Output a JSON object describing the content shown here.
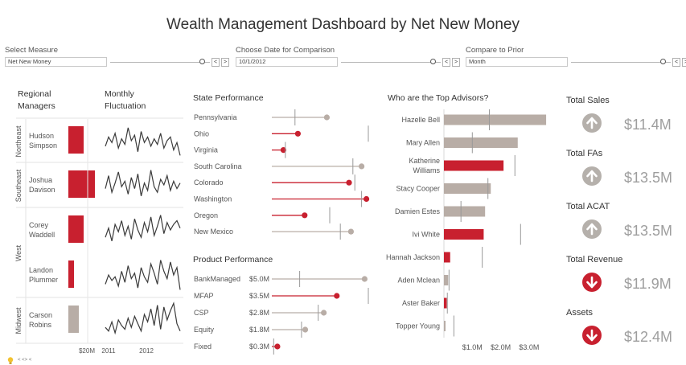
{
  "title": "Wealth Management Dashboard by Net New Money",
  "filters": [
    {
      "label": "Select Measure",
      "value": "Net New Money",
      "slider_fraction": 0.93
    },
    {
      "label": "Choose Date for Comparison",
      "value": "10/1/2012",
      "slider_fraction": 0.93
    },
    {
      "label": "Compare to Prior",
      "value": "Month",
      "slider_fraction": 0.93
    }
  ],
  "step_prev": "<",
  "step_next": ">",
  "regional": {
    "title_line1": "Regional",
    "title_line2": "Managers",
    "regions": [
      {
        "name": "Northeast",
        "managers": [
          "Hudson Simpson"
        ]
      },
      {
        "name": "Southeast",
        "managers": [
          "Joshua Davison"
        ]
      },
      {
        "name": "West",
        "managers": [
          "Corey Waddell",
          "Landon Plummer"
        ]
      },
      {
        "name": "Midwest",
        "managers": [
          "Carson Robins"
        ]
      }
    ],
    "bar_axis_label": "$20M",
    "managers": [
      {
        "line1": "Hudson",
        "line2": "Simpson",
        "value": 19,
        "positive": true
      },
      {
        "line1": "Joshua",
        "line2": "Davison",
        "value": 33,
        "positive": true
      },
      {
        "line1": "Corey",
        "line2": "Waddell",
        "value": 19,
        "positive": true
      },
      {
        "line1": "Landon",
        "line2": "Plummer",
        "value": 7,
        "positive": true
      },
      {
        "line1": "Carson",
        "line2": "Robins",
        "value": 13,
        "positive": false
      }
    ]
  },
  "monthly": {
    "title_line1": "Monthly",
    "title_line2": "Fluctuation",
    "axis_labels": [
      "2011",
      "2012"
    ],
    "series": [
      [
        0.35,
        0.6,
        0.45,
        0.7,
        0.3,
        0.55,
        0.4,
        0.85,
        0.5,
        0.65,
        0.2,
        0.75,
        0.45,
        0.6,
        0.35,
        0.55,
        0.4,
        0.7,
        0.3,
        0.5,
        0.6,
        0.25,
        0.45,
        0.1
      ],
      [
        0.4,
        0.75,
        0.3,
        0.55,
        0.85,
        0.45,
        0.6,
        0.25,
        0.7,
        0.4,
        0.8,
        0.2,
        0.55,
        0.35,
        0.9,
        0.45,
        0.3,
        0.65,
        0.5,
        0.75,
        0.35,
        0.6,
        0.4,
        0.55
      ],
      [
        0.3,
        0.55,
        0.2,
        0.65,
        0.45,
        0.75,
        0.35,
        0.6,
        0.25,
        0.8,
        0.5,
        0.3,
        0.7,
        0.45,
        0.85,
        0.35,
        0.6,
        0.9,
        0.4,
        0.7,
        0.5,
        0.65,
        0.75,
        0.55
      ],
      [
        0.25,
        0.5,
        0.35,
        0.45,
        0.2,
        0.6,
        0.3,
        0.75,
        0.4,
        0.55,
        0.15,
        0.7,
        0.45,
        0.3,
        0.8,
        0.55,
        0.25,
        0.9,
        0.6,
        0.4,
        0.85,
        0.5,
        0.7,
        0.1
      ],
      [
        0.3,
        0.2,
        0.45,
        0.15,
        0.5,
        0.35,
        0.25,
        0.55,
        0.3,
        0.6,
        0.4,
        0.2,
        0.65,
        0.45,
        0.8,
        0.35,
        0.9,
        0.25,
        0.85,
        0.5,
        0.75,
        0.95,
        0.4,
        0.2
      ]
    ]
  },
  "state_performance": {
    "title": "State Performance",
    "states": [
      {
        "name": "Pennsylvania",
        "value": 0.57,
        "reference": 0.24,
        "positive": false
      },
      {
        "name": "Ohio",
        "value": 0.27,
        "reference": 1.0,
        "positive": true
      },
      {
        "name": "Virginia",
        "value": 0.12,
        "reference": 0.14,
        "positive": true
      },
      {
        "name": "South Carolina",
        "value": 0.93,
        "reference": 0.84,
        "positive": false
      },
      {
        "name": "Colorado",
        "value": 0.8,
        "reference": 0.86,
        "positive": true
      },
      {
        "name": "Washington",
        "value": 0.98,
        "reference": 0.93,
        "positive": true
      },
      {
        "name": "Oregon",
        "value": 0.34,
        "reference": 0.6,
        "positive": true
      },
      {
        "name": "New Mexico",
        "value": 0.82,
        "reference": 0.71,
        "positive": false
      }
    ]
  },
  "product_performance": {
    "title": "Product Performance",
    "products": [
      {
        "name": "BankManaged",
        "label": "$5.0M",
        "value": 5.0,
        "reference": 1.5,
        "positive": false
      },
      {
        "name": "MFAP",
        "label": "$3.5M",
        "value": 3.5,
        "reference": 5.2,
        "positive": true
      },
      {
        "name": "CSP",
        "label": "$2.8M",
        "value": 2.8,
        "reference": 2.5,
        "positive": false
      },
      {
        "name": "Equity",
        "label": "$1.8M",
        "value": 1.8,
        "reference": 1.6,
        "positive": false
      },
      {
        "name": "Fixed",
        "label": "$0.3M",
        "value": 0.3,
        "reference": 0.1,
        "positive": true
      }
    ]
  },
  "top_advisors": {
    "title": "Who are the Top Advisors?",
    "axis_ticks": [
      "$1.0M",
      "$2.0M",
      "$3.0M"
    ],
    "advisors": [
      {
        "line1": "Hazelle Bell",
        "line2": "",
        "value": 3.6,
        "reference": 1.6,
        "positive": false
      },
      {
        "line1": "Mary Allen",
        "line2": "",
        "value": 2.6,
        "reference": 1.0,
        "positive": false
      },
      {
        "line1": "Katherine",
        "line2": "Williams",
        "value": 2.1,
        "reference": 2.5,
        "positive": true
      },
      {
        "line1": "Stacy Cooper",
        "line2": "",
        "value": 1.65,
        "reference": 1.55,
        "positive": false
      },
      {
        "line1": "Damien Estes",
        "line2": "",
        "value": 1.45,
        "reference": 0.6,
        "positive": false
      },
      {
        "line1": "Ivi White",
        "line2": "",
        "value": 1.4,
        "reference": 2.7,
        "positive": true
      },
      {
        "line1": "Hannah Jackson",
        "line2": "",
        "value": 0.22,
        "reference": 1.35,
        "positive": true
      },
      {
        "line1": "Aden Mclean",
        "line2": "",
        "value": 0.15,
        "reference": 0.18,
        "positive": false
      },
      {
        "line1": "Aster Baker",
        "line2": "",
        "value": 0.1,
        "reference": 0.12,
        "positive": true
      },
      {
        "line1": "Topper Young",
        "line2": "",
        "value": 0.03,
        "reference": 0.35,
        "positive": false
      }
    ]
  },
  "kpis": [
    {
      "title": "Total Sales",
      "value": "$11.4M",
      "direction": "up"
    },
    {
      "title": "Total FAs",
      "value": "$13.5M",
      "direction": "up"
    },
    {
      "title": "Total ACAT",
      "value": "$13.5M",
      "direction": "up"
    },
    {
      "title": "Total Revenue",
      "value": "$11.9M",
      "direction": "down"
    },
    {
      "title": "Assets",
      "value": "$12.4M",
      "direction": "down"
    }
  ],
  "footer_text": "< <> <",
  "colors": {
    "accent": "#c8202f",
    "neutral": "#b8ada6",
    "reference": "#999999",
    "kpi_up": "#b5b0ab",
    "kpi_down": "#c8202f"
  },
  "icons": {
    "up": "arrow-up-circle-icon",
    "down": "arrow-down-circle-icon",
    "hint": "lightbulb-icon"
  }
}
